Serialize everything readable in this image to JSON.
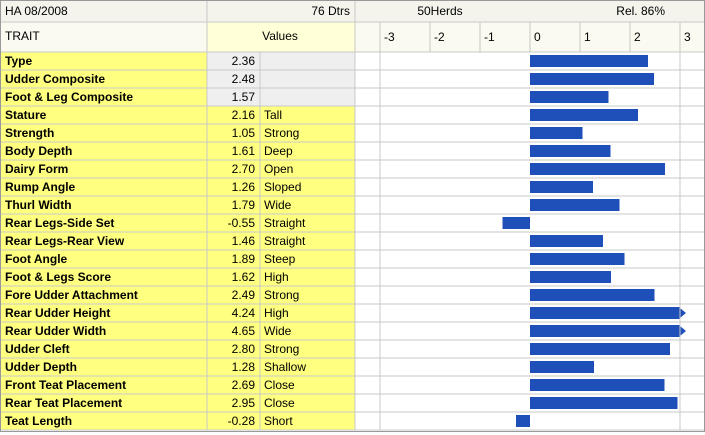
{
  "chart_data": {
    "type": "bar",
    "title": "HA 08/2008",
    "daughters": "76 Dtrs",
    "herds": "50Herds",
    "reliability": "Rel. 86%",
    "category_header": "TRAIT",
    "value_header": "Values",
    "categories": [
      "Type",
      "Udder Composite",
      "Foot & Leg Composite",
      "Stature",
      "Strength",
      "Body Depth",
      "Dairy Form",
      "Rump Angle",
      "Thurl Width",
      "Rear Legs-Side Set",
      "Rear Legs-Rear View",
      "Foot Angle",
      "Foot & Legs Score",
      "Fore Udder Attachment",
      "Rear Udder Height",
      "Rear Udder Width",
      "Udder Cleft",
      "Udder Depth",
      "Front Teat Placement",
      "Rear Teat Placement",
      "Teat Length"
    ],
    "values": [
      2.36,
      2.48,
      1.57,
      2.16,
      1.05,
      1.61,
      2.7,
      1.26,
      1.79,
      -0.55,
      1.46,
      1.89,
      1.62,
      2.49,
      4.24,
      4.65,
      2.8,
      1.28,
      2.69,
      2.95,
      -0.28
    ],
    "value_labels": [
      "2.36",
      "2.48",
      "1.57",
      "2.16",
      "1.05",
      "1.61",
      "2.70",
      "1.26",
      "1.79",
      "-0.55",
      "1.46",
      "1.89",
      "1.62",
      "2.49",
      "4.24",
      "4.65",
      "2.80",
      "1.28",
      "2.69",
      "2.95",
      "-0.28"
    ],
    "descriptors": [
      null,
      null,
      null,
      "Tall",
      "Strong",
      "Deep",
      "Open",
      "Sloped",
      "Wide",
      "Straight",
      "Straight",
      "Steep",
      "High",
      "Strong",
      "High",
      "Wide",
      "Strong",
      "Shallow",
      "Close",
      "Close",
      "Short"
    ],
    "color": "#1f4fb8",
    "xlim": [
      -3,
      3
    ],
    "xticks": [
      -3,
      -2,
      -1,
      0,
      1,
      2,
      3
    ],
    "grid": true
  }
}
